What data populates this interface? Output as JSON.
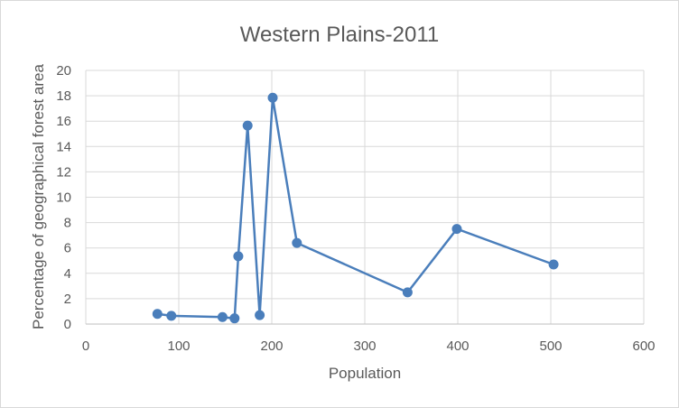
{
  "chart_data": {
    "type": "line",
    "title": "Western Plains-2011",
    "xlabel": "Population",
    "ylabel": "Percentage of geographical forest area",
    "xlim": [
      0,
      600
    ],
    "ylim": [
      0,
      20
    ],
    "x_ticks": [
      0,
      100,
      200,
      300,
      400,
      500,
      600
    ],
    "y_ticks": [
      0,
      2,
      4,
      6,
      8,
      10,
      12,
      14,
      16,
      18,
      20
    ],
    "grid": true,
    "legend": "none",
    "series": [
      {
        "color": "#4a7ebb",
        "points": [
          {
            "x": 77,
            "y": 0.8
          },
          {
            "x": 92,
            "y": 0.65
          },
          {
            "x": 147,
            "y": 0.55
          },
          {
            "x": 160,
            "y": 0.45
          },
          {
            "x": 164,
            "y": 5.35
          },
          {
            "x": 174,
            "y": 15.65
          },
          {
            "x": 187,
            "y": 0.7
          },
          {
            "x": 201,
            "y": 17.85
          },
          {
            "x": 227,
            "y": 6.4
          },
          {
            "x": 346,
            "y": 2.5
          },
          {
            "x": 399,
            "y": 7.5
          },
          {
            "x": 503,
            "y": 4.7
          }
        ]
      }
    ]
  }
}
